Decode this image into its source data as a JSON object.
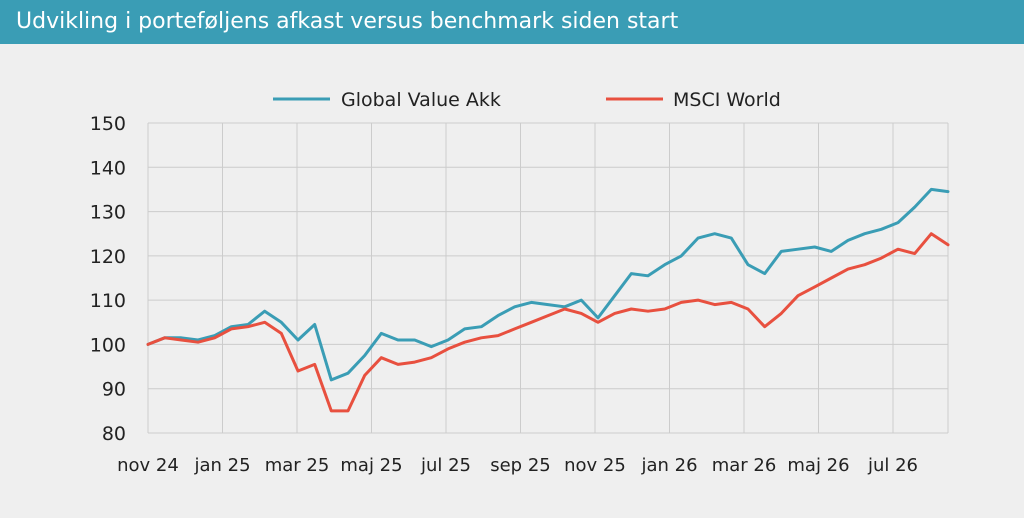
{
  "header": {
    "title": "Udvikling i porteføljens afkast versus benchmark siden start"
  },
  "colors": {
    "header_bg": "#3a9db5",
    "series_1": "#3a9db5",
    "series_2": "#e8503f",
    "grid": "#cccccc",
    "background": "#efefef"
  },
  "chart_data": {
    "type": "line",
    "title": "Udvikling i porteføljens afkast versus benchmark siden start",
    "xlabel": "",
    "ylabel": "",
    "ylim": [
      80,
      150
    ],
    "yticks": [
      80,
      90,
      100,
      110,
      120,
      130,
      140,
      150
    ],
    "xticks": [
      "nov 24",
      "jan 25",
      "mar 25",
      "maj 25",
      "jul 25",
      "sep 25",
      "nov 25",
      "jan 26",
      "mar 26",
      "maj 26",
      "jul 26"
    ],
    "grid": true,
    "legend_position": "top",
    "x": [
      "nov 24",
      "nov 24",
      "dec 24",
      "dec 24",
      "jan 25",
      "jan 25",
      "feb 25",
      "feb 25",
      "mar 25",
      "mar 25",
      "mar 25",
      "mar 25",
      "apr 25",
      "apr 25",
      "apr 25",
      "apr 25",
      "maj 25",
      "maj 25",
      "jun 25",
      "jun 25",
      "jul 25",
      "jul 25",
      "aug 25",
      "aug 25",
      "sep 25",
      "sep 25",
      "okt 25",
      "okt 25",
      "nov 25",
      "nov 25",
      "dec 25",
      "dec 25",
      "jan 26",
      "jan 26",
      "feb 26",
      "feb 26",
      "mar 26",
      "mar 26",
      "mar 26",
      "apr 26",
      "apr 26",
      "maj 26",
      "maj 26",
      "jun 26",
      "jun 26",
      "jul 26",
      "jul 26",
      "aug 26",
      "aug 26"
    ],
    "series": [
      {
        "name": "Global Value Akk",
        "values": [
          100,
          101.5,
          101.5,
          101,
          102,
          104,
          104.5,
          107.5,
          105,
          101,
          104.5,
          92,
          93.5,
          97.5,
          102.5,
          101,
          101,
          99.5,
          101,
          103.5,
          104,
          106.5,
          108.5,
          109.5,
          109,
          108.5,
          110,
          106,
          111,
          116,
          115.5,
          118,
          120,
          124,
          125,
          124,
          118,
          116,
          121,
          121.5,
          122,
          121,
          123.5,
          125,
          126,
          127.5,
          131,
          135,
          134.5
        ]
      },
      {
        "name": "MSCI World",
        "values": [
          100,
          101.5,
          101,
          100.5,
          101.5,
          103.5,
          104,
          105,
          102.5,
          94,
          95.5,
          85,
          85,
          93,
          97,
          95.5,
          96,
          97,
          99,
          100.5,
          101.5,
          102,
          103.5,
          105,
          106.5,
          108,
          107,
          105,
          107,
          108,
          107.5,
          108,
          109.5,
          110,
          109,
          109.5,
          108,
          104,
          107,
          111,
          113,
          115,
          117,
          118,
          119.5,
          121.5,
          120.5,
          125,
          122.5
        ]
      }
    ]
  }
}
